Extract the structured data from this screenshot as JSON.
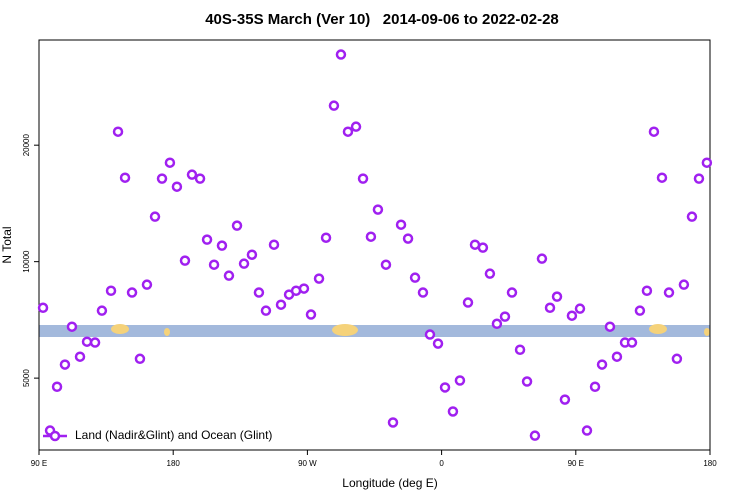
{
  "chart_data": {
    "type": "scatter",
    "title": "40S-35S March (Ver 10)   2014-09-06 to 2022-02-28",
    "x_label": "Longitude (deg E)",
    "y_label": "N Total",
    "x": [
      92.7,
      97.4,
      102.1,
      107.4,
      112.1,
      117.5,
      122.2,
      127.6,
      132.2,
      138.3,
      143.0,
      147.7,
      152.4,
      157.7,
      162.4,
      167.8,
      172.5,
      177.8,
      182.5,
      187.9,
      192.6,
      198.0,
      202.7,
      207.4,
      212.7,
      217.4,
      222.8,
      227.5,
      232.8,
      237.5,
      242.2,
      247.6,
      252.3,
      257.7,
      262.4,
      267.7,
      272.4,
      277.8,
      282.5,
      287.8,
      292.5,
      297.2,
      302.6,
      307.3,
      312.6,
      317.3,
      322.7,
      327.4,
      332.8,
      337.5,
      342.2,
      347.5,
      352.2,
      357.6,
      362.3,
      367.6,
      372.3,
      377.7,
      382.4,
      387.7,
      392.4,
      397.1,
      402.5,
      407.2,
      412.6,
      417.3,
      422.6,
      427.3,
      432.7,
      437.4,
      442.7,
      447.4,
      452.8,
      457.5,
      462.9,
      467.6,
      472.9,
      477.6,
      483.0,
      487.7,
      493.0,
      497.7,
      502.4,
      507.8,
      512.5,
      517.8,
      522.5,
      527.9,
      532.6,
      537.9
    ],
    "series": [
      {
        "name": "Land (Nadir&Glint) and Ocean (Glint)",
        "color": "#a020f0",
        "values": [
          7600,
          3660,
          4750,
          5420,
          6790,
          5680,
          6210,
          6180,
          7470,
          8410,
          21670,
          16480,
          8320,
          5610,
          8720,
          13070,
          16390,
          18020,
          15620,
          10060,
          16780,
          16390,
          11400,
          9820,
          11000,
          9200,
          12390,
          9880,
          10420,
          8320,
          7470,
          11060,
          7740,
          8220,
          8410,
          8520,
          7300,
          9040,
          11530,
          25300,
          34300,
          21670,
          22330,
          16390,
          11600,
          13630,
          9820,
          3840,
          12460,
          11470,
          9090,
          8320,
          6480,
          6140,
          4730,
          4100,
          4930,
          7840,
          11060,
          10870,
          9310,
          6910,
          7210,
          8320,
          5920,
          4900,
          3550,
          10180,
          7600,
          8120,
          4400,
          7250,
          7560,
          3660,
          4750,
          5420,
          6790,
          5680,
          6180,
          6180,
          7470,
          8410,
          21670,
          16480,
          8320,
          5610,
          8720,
          13070,
          16390,
          18020
        ]
      }
    ],
    "xlim": [
      90,
      540
    ],
    "xticks": [
      {
        "value": 90,
        "label": "90 E"
      },
      {
        "value": 180,
        "label": "180"
      },
      {
        "value": 270,
        "label": "90 W"
      },
      {
        "value": 360,
        "label": "0"
      },
      {
        "value": 450,
        "label": "90 E"
      },
      {
        "value": 540,
        "label": "180"
      }
    ],
    "ylim": [
      3260,
      37400
    ],
    "yticks": [
      5000,
      10000,
      20000
    ],
    "y_log": true,
    "legend": "bottom-left"
  }
}
